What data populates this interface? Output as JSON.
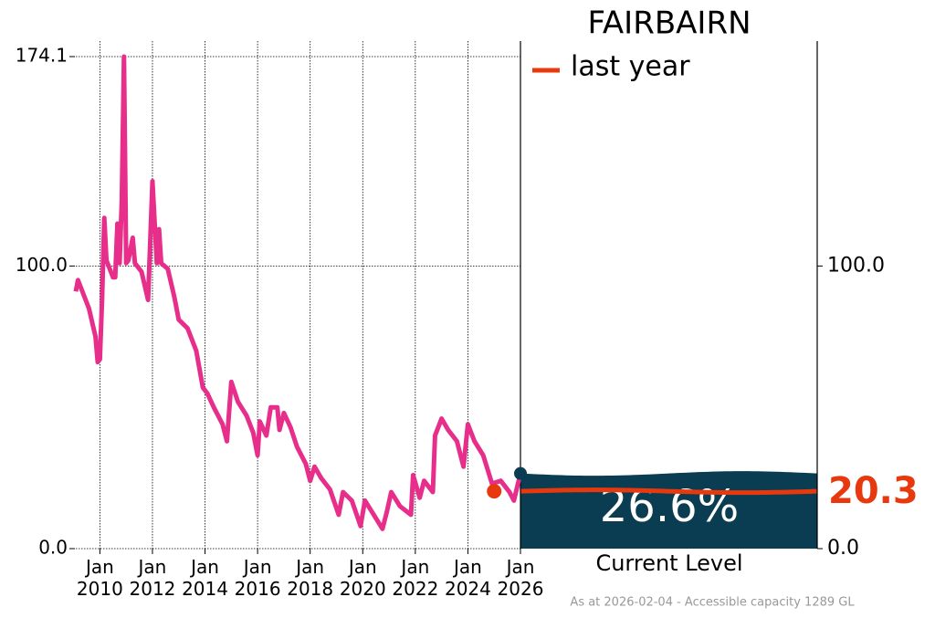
{
  "chart_data": {
    "type": "line",
    "title": "FAIRBAIRN",
    "footnote": "As at 2026-02-04 - Accessible capacity 1289 GL",
    "xlim": [
      "2009-02",
      "2026-01"
    ],
    "xticks": [
      {
        "value": "2010-01",
        "label": "Jan 2010"
      },
      {
        "value": "2012-01",
        "label": "Jan 2012"
      },
      {
        "value": "2014-01",
        "label": "Jan 2014"
      },
      {
        "value": "2016-01",
        "label": "Jan 2016"
      },
      {
        "value": "2018-01",
        "label": "Jan 2018"
      },
      {
        "value": "2020-01",
        "label": "Jan 2020"
      },
      {
        "value": "2022-01",
        "label": "Jan 2022"
      },
      {
        "value": "2024-01",
        "label": "Jan 2024"
      },
      {
        "value": "2026-01",
        "label": "Jan 2026"
      }
    ],
    "ylim": [
      0,
      174.1
    ],
    "yticks": [
      {
        "value": 0,
        "label": "0.0"
      },
      {
        "value": 100,
        "label": "100.0"
      },
      174.1
    ],
    "y2lim": [
      0,
      174.1
    ],
    "y2ticks": [
      {
        "value": 0,
        "label": "0.0"
      },
      {
        "value": 100,
        "label": "100.0"
      }
    ],
    "grid": true,
    "x": [
      "2009-02",
      "2009-03",
      "2009-05",
      "2009-08",
      "2009-11",
      "2009-12",
      "2010-01",
      "2010-02",
      "2010-03",
      "2010-04",
      "2010-07",
      "2010-08",
      "2010-09",
      "2010-10",
      "2010-11",
      "2010-12",
      "2011-01",
      "2011-02",
      "2011-04",
      "2011-05",
      "2011-08",
      "2011-11",
      "2012-01",
      "2012-03",
      "2012-04",
      "2012-05",
      "2012-08",
      "2012-11",
      "2013-01",
      "2013-05",
      "2013-09",
      "2013-12",
      "2014-02",
      "2014-05",
      "2014-09",
      "2014-11",
      "2015-01",
      "2015-04",
      "2015-08",
      "2015-11",
      "2016-01",
      "2016-02",
      "2016-05",
      "2016-07",
      "2016-10",
      "2016-11",
      "2017-01",
      "2017-04",
      "2017-07",
      "2017-11",
      "2018-01",
      "2018-03",
      "2018-06",
      "2018-10",
      "2019-02",
      "2019-04",
      "2019-08",
      "2019-12",
      "2020-02",
      "2020-06",
      "2020-10",
      "2020-12",
      "2021-02",
      "2021-06",
      "2021-11",
      "2021-12",
      "2022-03",
      "2022-05",
      "2022-09",
      "2022-10",
      "2023-01",
      "2023-04",
      "2023-08",
      "2023-11",
      "2024-01",
      "2024-04",
      "2024-08",
      "2024-12",
      "2025-04",
      "2025-08",
      "2025-10",
      "2026-01"
    ],
    "series": [
      {
        "color": "#e62e8a",
        "values": [
          91,
          95,
          91,
          85,
          75,
          66,
          67,
          88,
          117,
          102,
          96,
          96,
          115,
          101,
          123,
          174.1,
          101,
          102,
          110,
          101,
          98,
          88,
          130,
          101,
          113,
          101,
          99,
          89,
          81,
          78,
          70,
          57,
          55,
          50,
          44,
          38,
          59,
          52,
          47,
          41,
          33,
          45,
          40,
          50,
          50,
          42,
          48,
          43,
          36,
          30,
          24,
          29,
          25,
          21,
          12,
          20,
          17,
          8,
          17,
          12,
          7,
          13,
          20,
          15,
          12,
          26,
          18,
          24,
          20,
          40,
          46,
          42,
          38,
          29,
          44,
          38,
          33,
          23,
          24,
          20,
          17,
          26.6
        ]
      }
    ],
    "current": {
      "name": "Current Level",
      "value": 26.6,
      "label": "26.6%",
      "color": "#0b3d52"
    },
    "last_year": {
      "name": "last year",
      "x": "2025-01",
      "value": 20.3,
      "color": "#e8380d"
    }
  }
}
